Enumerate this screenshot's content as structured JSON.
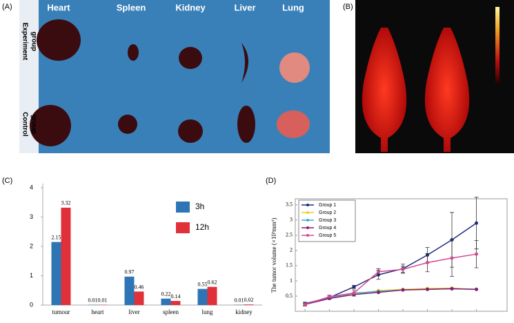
{
  "figure": {
    "panel_labels": [
      "(A)",
      "(B)",
      "(C)",
      "(D)"
    ],
    "photo_a": {
      "organs": [
        "Heart",
        "Spleen",
        "Kidney",
        "Liver",
        "Lung"
      ],
      "groups": [
        [
          "Experiment",
          "group"
        ],
        [
          "Control",
          "group"
        ]
      ]
    }
  },
  "chart_data": [
    {
      "type": "bar",
      "categories": [
        "tumour",
        "heart",
        "liver",
        "spleen",
        "lung",
        "kidney"
      ],
      "series": [
        {
          "name": "3h",
          "color": "#2e75b6",
          "values": [
            2.15,
            0.01,
            0.97,
            0.22,
            0.55,
            0.01
          ]
        },
        {
          "name": "12h",
          "color": "#e0303a",
          "values": [
            3.32,
            0.01,
            0.46,
            0.14,
            0.62,
            0.02
          ]
        }
      ],
      "ylim": [
        0,
        4
      ],
      "yticks": [
        0,
        1,
        2,
        3,
        4
      ],
      "legend": "right"
    },
    {
      "type": "line",
      "ylabel": "The tumor volume (×10³mm³)",
      "categories": [
        null,
        null,
        null,
        null,
        null,
        null,
        null,
        null
      ],
      "series": [
        {
          "name": "Group 1",
          "color": "#1f2a7a",
          "values": [
            0.25,
            0.45,
            0.8,
            1.2,
            1.4,
            1.85,
            2.35,
            2.9
          ],
          "errors": [
            0.05,
            0.05,
            0.05,
            0.15,
            0.15,
            0.25,
            0.9,
            0.85
          ]
        },
        {
          "name": "Group 2",
          "color": "#e8d020",
          "values": [
            0.22,
            0.45,
            0.55,
            0.68,
            0.72,
            0.75,
            0.76,
            0.72
          ]
        },
        {
          "name": "Group 3",
          "color": "#30b0d0",
          "values": [
            0.22,
            0.45,
            0.6,
            0.65,
            0.7,
            0.72,
            0.74,
            0.72
          ]
        },
        {
          "name": "Group 4",
          "color": "#8a1a7a",
          "values": [
            0.22,
            0.42,
            0.55,
            0.62,
            0.7,
            0.72,
            0.74,
            0.72
          ]
        },
        {
          "name": "Group 5",
          "color": "#d04a90",
          "values": [
            0.22,
            0.48,
            0.6,
            1.3,
            1.38,
            1.6,
            1.75,
            1.88
          ],
          "errors": [
            0.05,
            0.05,
            0.1,
            0.1,
            0.1,
            0.3,
            0.6,
            0.45
          ]
        }
      ],
      "ylim": [
        0,
        3.7
      ],
      "yticks": [
        0.5,
        1,
        1.5,
        2,
        2.5,
        3,
        3.5
      ],
      "legend": "upper left"
    }
  ]
}
